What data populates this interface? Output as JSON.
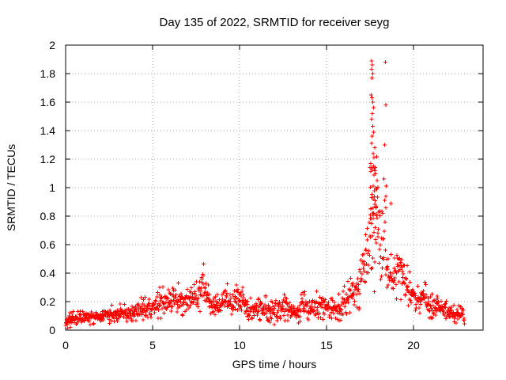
{
  "chart_data": {
    "type": "scatter",
    "title": "Day 135 of 2022, SRMTID for receiver seyg",
    "xlabel": "GPS time / hours",
    "ylabel": "SRMTID / TECUs",
    "xlim": [
      0,
      24
    ],
    "ylim": [
      0,
      2
    ],
    "xticks": [
      0,
      5,
      10,
      15,
      20
    ],
    "xtick_labels": [
      "0",
      "5",
      "10",
      "15",
      "20"
    ],
    "yticks": [
      0,
      0.2,
      0.4,
      0.6,
      0.8,
      1,
      1.2,
      1.4,
      1.6,
      1.8,
      2
    ],
    "ytick_labels": [
      "0",
      "0.2",
      "0.4",
      "0.6",
      "0.8",
      "1",
      "1.2",
      "1.4",
      "1.6",
      "1.8",
      "2"
    ],
    "grid": "dotted",
    "legend": "none",
    "marker": {
      "shape": "plus",
      "color": "#ff0000",
      "size": 5
    },
    "series_name": "SRMTID",
    "sampling": {
      "x_start": 0,
      "x_end": 22.95,
      "x_step": 0.018,
      "seed": 1350
    },
    "band_envelope": [
      [
        0.0,
        0.03,
        0.1
      ],
      [
        0.5,
        0.04,
        0.12
      ],
      [
        1.0,
        0.05,
        0.13
      ],
      [
        1.5,
        0.05,
        0.14
      ],
      [
        2.0,
        0.06,
        0.15
      ],
      [
        2.5,
        0.06,
        0.16
      ],
      [
        3.0,
        0.07,
        0.17
      ],
      [
        3.5,
        0.07,
        0.18
      ],
      [
        4.0,
        0.08,
        0.19
      ],
      [
        4.3,
        0.09,
        0.24
      ],
      [
        4.7,
        0.08,
        0.2
      ],
      [
        5.0,
        0.1,
        0.23
      ],
      [
        5.5,
        0.1,
        0.28
      ],
      [
        6.0,
        0.12,
        0.28
      ],
      [
        6.5,
        0.13,
        0.31
      ],
      [
        7.0,
        0.12,
        0.27
      ],
      [
        7.5,
        0.14,
        0.32
      ],
      [
        7.9,
        0.17,
        0.44
      ],
      [
        8.2,
        0.14,
        0.31
      ],
      [
        8.6,
        0.1,
        0.22
      ],
      [
        9.0,
        0.11,
        0.26
      ],
      [
        9.3,
        0.12,
        0.34
      ],
      [
        9.6,
        0.1,
        0.22
      ],
      [
        10.0,
        0.12,
        0.37
      ],
      [
        10.3,
        0.1,
        0.25
      ],
      [
        10.8,
        0.07,
        0.2
      ],
      [
        11.2,
        0.09,
        0.24
      ],
      [
        11.6,
        0.08,
        0.21
      ],
      [
        12.0,
        0.05,
        0.18
      ],
      [
        12.3,
        0.1,
        0.28
      ],
      [
        12.8,
        0.08,
        0.22
      ],
      [
        13.3,
        0.05,
        0.18
      ],
      [
        13.6,
        0.09,
        0.25
      ],
      [
        14.2,
        0.08,
        0.22
      ],
      [
        14.8,
        0.1,
        0.3
      ],
      [
        15.2,
        0.07,
        0.2
      ],
      [
        15.6,
        0.08,
        0.21
      ],
      [
        16.0,
        0.1,
        0.3
      ],
      [
        16.4,
        0.13,
        0.35
      ],
      [
        16.8,
        0.17,
        0.42
      ],
      [
        17.1,
        0.22,
        0.6
      ],
      [
        17.35,
        0.3,
        0.72
      ],
      [
        17.55,
        0.36,
        1.0
      ],
      [
        17.9,
        0.38,
        1.1
      ],
      [
        18.15,
        0.3,
        0.78
      ],
      [
        18.35,
        0.28,
        0.85
      ],
      [
        18.6,
        0.22,
        0.52
      ],
      [
        18.9,
        0.2,
        0.45
      ],
      [
        19.15,
        0.25,
        0.62
      ],
      [
        19.45,
        0.2,
        0.5
      ],
      [
        19.7,
        0.16,
        0.4
      ],
      [
        20.0,
        0.14,
        0.32
      ],
      [
        20.3,
        0.12,
        0.27
      ],
      [
        20.6,
        0.14,
        0.33
      ],
      [
        21.0,
        0.1,
        0.25
      ],
      [
        21.5,
        0.09,
        0.22
      ],
      [
        22.0,
        0.08,
        0.19
      ],
      [
        22.5,
        0.06,
        0.16
      ],
      [
        22.95,
        0.05,
        0.13
      ]
    ],
    "peak_cluster": {
      "x0": 17.5,
      "x1": 17.95,
      "y0": 0.78,
      "y1": 1.16,
      "n": 26
    },
    "outlier_points": [
      [
        0.12,
        0.01
      ],
      [
        0.28,
        0.02
      ],
      [
        17.58,
        1.89
      ],
      [
        17.63,
        1.86
      ],
      [
        17.6,
        1.83
      ],
      [
        17.66,
        1.8
      ],
      [
        17.62,
        1.77
      ],
      [
        18.38,
        1.88
      ],
      [
        17.57,
        1.65
      ],
      [
        17.62,
        1.63
      ],
      [
        17.66,
        1.6
      ],
      [
        17.7,
        1.56
      ],
      [
        17.63,
        1.52
      ],
      [
        17.6,
        1.48
      ],
      [
        18.42,
        1.58
      ],
      [
        17.65,
        1.43
      ],
      [
        17.7,
        1.39
      ],
      [
        17.62,
        1.36
      ],
      [
        17.58,
        1.31
      ],
      [
        17.78,
        1.28
      ],
      [
        18.33,
        1.3
      ],
      [
        17.68,
        1.24
      ],
      [
        17.73,
        1.21
      ],
      [
        17.55,
        1.17
      ],
      [
        17.62,
        1.13
      ],
      [
        17.7,
        1.15
      ],
      [
        17.78,
        1.12
      ],
      [
        18.3,
        1.06
      ],
      [
        18.44,
        1.01
      ],
      [
        18.4,
        0.94
      ],
      [
        18.7,
        0.89
      ]
    ]
  }
}
